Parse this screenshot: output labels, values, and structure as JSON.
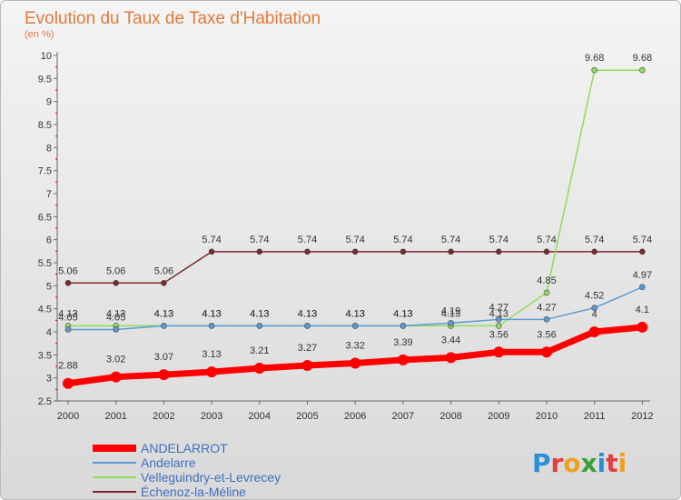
{
  "chart_data": {
    "type": "line",
    "title": "Evolution du Taux de Taxe d'Habitation",
    "subtitle": "(en %)",
    "xlabel": "",
    "ylabel": "",
    "categories": [
      "2000",
      "2001",
      "2002",
      "2003",
      "2004",
      "2005",
      "2006",
      "2007",
      "2008",
      "2009",
      "2010",
      "2011",
      "2012"
    ],
    "ylim": [
      2.5,
      10
    ],
    "yticks": [
      "2.5",
      "3",
      "3.5",
      "4",
      "4.5",
      "5",
      "5.5",
      "6",
      "6.5",
      "7",
      "7.5",
      "8",
      "8.5",
      "9",
      "9.5",
      "10"
    ],
    "grid": false,
    "legend_position": "bottom-left",
    "series": [
      {
        "name": "ANDELARROT",
        "color": "#ff0000",
        "values": [
          2.88,
          3.02,
          3.07,
          3.13,
          3.21,
          3.27,
          3.32,
          3.39,
          3.44,
          3.56,
          3.56,
          4,
          4.1
        ],
        "labels": [
          "2.88",
          "3.02",
          "3.07",
          "3.13",
          "3.21",
          "3.27",
          "3.32",
          "3.39",
          "3.44",
          "3.56",
          "3.56",
          "4",
          "4.1"
        ]
      },
      {
        "name": "Andelarre",
        "color": "#5b9bd5",
        "values": [
          4.05,
          4.05,
          4.13,
          4.13,
          4.13,
          4.13,
          4.13,
          4.13,
          4.19,
          4.27,
          4.27,
          4.52,
          4.97
        ],
        "labels": [
          "4.05",
          "4.05",
          "4.13",
          "4.13",
          "4.13",
          "4.13",
          "4.13",
          "4.13",
          "4.19",
          "4.27",
          "4.27",
          "4.52",
          "4.97"
        ]
      },
      {
        "name": "Velleguindry-et-Levrecey",
        "color": "#8fdc5a",
        "values": [
          4.13,
          4.13,
          4.13,
          4.13,
          4.13,
          4.13,
          4.13,
          4.13,
          4.13,
          4.13,
          4.85,
          9.68,
          9.68
        ],
        "labels": [
          "4.13",
          "4.13",
          "4.13",
          "4.13",
          "4.13",
          "4.13",
          "4.13",
          "4.13",
          "4.13",
          "4.13",
          "4.85",
          "9.68",
          "9.68"
        ]
      },
      {
        "name": "Échenoz-la-Méline",
        "color": "#7b2a2a",
        "values": [
          5.06,
          5.06,
          5.06,
          5.74,
          5.74,
          5.74,
          5.74,
          5.74,
          5.74,
          5.74,
          5.74,
          5.74,
          5.74
        ],
        "labels": [
          "5.06",
          "5.06",
          "5.06",
          "5.74",
          "5.74",
          "5.74",
          "5.74",
          "5.74",
          "5.74",
          "5.74",
          "5.74",
          "5.74",
          "5.74"
        ]
      }
    ]
  },
  "logo": {
    "letters": [
      "P",
      "r",
      "o",
      "x",
      "i",
      "t",
      "i"
    ],
    "colors": [
      "#2a8fd6",
      "#e04040",
      "#f0a020",
      "#3aa03a",
      "#2a8fd6",
      "#e04040",
      "#f0a020"
    ]
  }
}
